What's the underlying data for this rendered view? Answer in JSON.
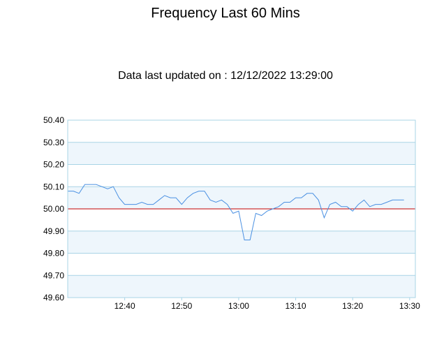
{
  "chart_data": {
    "type": "line",
    "title": "Frequency Last 60 Mins",
    "subtitle": "Data last updated on : 12/12/2022 13:29:00",
    "xlabel": "",
    "ylabel": "",
    "ylim": [
      49.6,
      50.4
    ],
    "y_ticks": [
      "49.60",
      "49.70",
      "49.80",
      "49.90",
      "50.00",
      "50.10",
      "50.20",
      "50.30",
      "50.40"
    ],
    "x_range": [
      "12:30",
      "13:31"
    ],
    "x_ticks": [
      "12:40",
      "12:50",
      "13:00",
      "13:10",
      "13:20",
      "13:30"
    ],
    "reference_line": {
      "y": 50.0,
      "color": "#c00000"
    },
    "series": [
      {
        "color": "#4a90e2",
        "x": [
          "12:30",
          "12:31",
          "12:32",
          "12:33",
          "12:34",
          "12:35",
          "12:36",
          "12:37",
          "12:38",
          "12:39",
          "12:40",
          "12:41",
          "12:42",
          "12:43",
          "12:44",
          "12:45",
          "12:46",
          "12:47",
          "12:48",
          "12:49",
          "12:50",
          "12:51",
          "12:52",
          "12:53",
          "12:54",
          "12:55",
          "12:56",
          "12:57",
          "12:58",
          "12:59",
          "13:00",
          "13:01",
          "13:02",
          "13:03",
          "13:04",
          "13:05",
          "13:06",
          "13:07",
          "13:08",
          "13:09",
          "13:10",
          "13:11",
          "13:12",
          "13:13",
          "13:14",
          "13:15",
          "13:16",
          "13:17",
          "13:18",
          "13:19",
          "13:20",
          "13:21",
          "13:22",
          "13:23",
          "13:24",
          "13:25",
          "13:26",
          "13:27",
          "13:28",
          "13:29"
        ],
        "y": [
          50.08,
          50.08,
          50.07,
          50.11,
          50.11,
          50.11,
          50.1,
          50.09,
          50.1,
          50.05,
          50.02,
          50.02,
          50.02,
          50.03,
          50.02,
          50.02,
          50.04,
          50.06,
          50.05,
          50.05,
          50.02,
          50.05,
          50.07,
          50.08,
          50.08,
          50.04,
          50.03,
          50.04,
          50.02,
          49.98,
          49.99,
          49.86,
          49.86,
          49.98,
          49.97,
          49.99,
          50.0,
          50.01,
          50.03,
          50.03,
          50.05,
          50.05,
          50.07,
          50.07,
          50.04,
          49.96,
          50.02,
          50.03,
          50.01,
          50.01,
          49.99,
          50.02,
          50.04,
          50.01,
          50.02,
          50.02,
          50.03,
          50.04,
          50.04,
          50.04
        ]
      }
    ],
    "band_fill": "#eef6fc",
    "grid_color": "#a9d4e6",
    "axis_color": "#a9d4e6",
    "grid": true
  }
}
